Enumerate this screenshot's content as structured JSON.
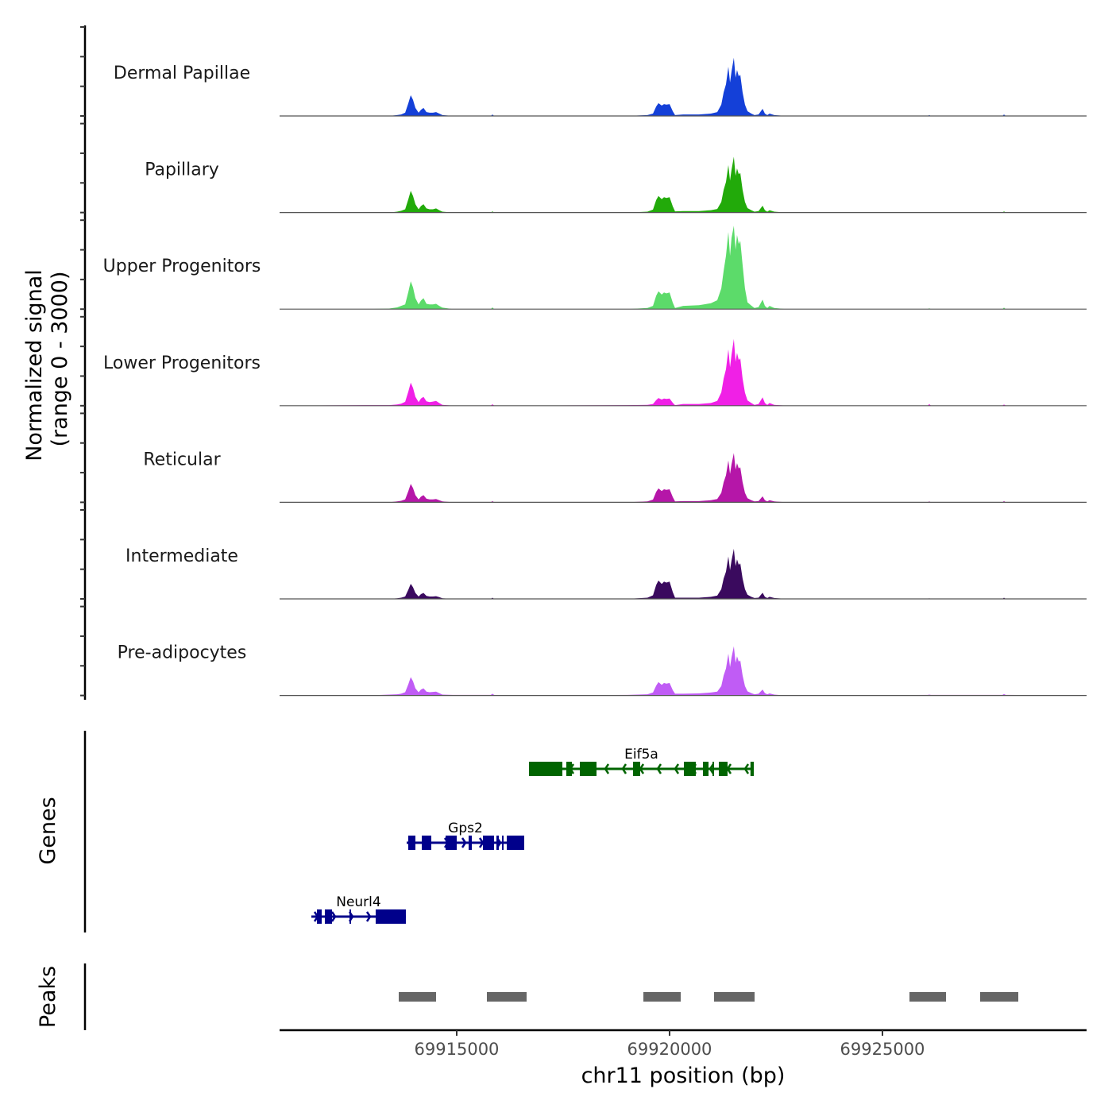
{
  "chart_data": {
    "type": "area",
    "title": "",
    "xlabel": "chr11 position (bp)",
    "ylabel": "Normalized signal\n(range 0 - 3000)",
    "ylabel_lines": [
      "Normalized signal",
      "(range 0 - 3000)"
    ],
    "ylim": [
      0,
      3000
    ],
    "xlim": [
      69910840,
      69929795
    ],
    "x_ticks": [
      69915000,
      69920000,
      69925000
    ],
    "x_tick_labels": [
      "69915000",
      "69920000",
      "69925000"
    ],
    "grid": false,
    "x": [
      69910840,
      69912855,
      69913415,
      69913600,
      69913695,
      69913790,
      69913865,
      69913920,
      69913975,
      69914030,
      69914105,
      69914160,
      69914220,
      69914290,
      69914365,
      69914440,
      69914515,
      69914590,
      69914665,
      69914910,
      69915800,
      69915840,
      69915880,
      69916215,
      69919010,
      69919480,
      69919610,
      69919685,
      69919740,
      69919815,
      69919870,
      69919925,
      69920000,
      69920075,
      69920130,
      69920320,
      69920690,
      69920970,
      69921120,
      69921215,
      69921270,
      69921325,
      69921380,
      69921420,
      69921455,
      69921510,
      69921550,
      69921585,
      69921625,
      69921660,
      69921715,
      69921770,
      69921830,
      69921920,
      69921995,
      69922090,
      69922185,
      69922240,
      69922295,
      69922350,
      69922460,
      69922740,
      69926065,
      69926100,
      69926140,
      69927820,
      69927855,
      69927895,
      69929795
    ],
    "series": [
      {
        "name": "Dermal Papillae",
        "color": "#1440d8",
        "values": [
          0,
          0,
          0,
          30,
          50,
          110,
          430,
          700,
          540,
          270,
          110,
          210,
          270,
          130,
          110,
          110,
          130,
          80,
          30,
          0,
          0,
          50,
          0,
          0,
          0,
          30,
          80,
          320,
          430,
          350,
          400,
          380,
          400,
          160,
          30,
          50,
          50,
          80,
          130,
          380,
          800,
          1070,
          1660,
          1130,
          1500,
          1960,
          1290,
          1550,
          1340,
          1390,
          800,
          380,
          160,
          80,
          30,
          50,
          240,
          80,
          30,
          80,
          30,
          0,
          0,
          30,
          0,
          0,
          50,
          0,
          0
        ]
      },
      {
        "name": "Papillary",
        "color": "#22aa0a",
        "values": [
          0,
          0,
          0,
          30,
          60,
          110,
          450,
          730,
          560,
          280,
          110,
          220,
          280,
          140,
          110,
          110,
          140,
          80,
          30,
          0,
          0,
          40,
          0,
          0,
          0,
          30,
          100,
          420,
          560,
          450,
          520,
          490,
          520,
          210,
          40,
          50,
          50,
          80,
          120,
          360,
          770,
          1030,
          1600,
          1080,
          1440,
          1880,
          1240,
          1490,
          1290,
          1340,
          770,
          360,
          150,
          80,
          30,
          50,
          230,
          80,
          30,
          80,
          30,
          0,
          0,
          20,
          0,
          0,
          40,
          0,
          0
        ]
      },
      {
        "name": "Upper Progenitors",
        "color": "#5cdb6a",
        "values": [
          0,
          0,
          20,
          60,
          110,
          160,
          580,
          940,
          730,
          370,
          160,
          290,
          370,
          180,
          160,
          160,
          180,
          110,
          50,
          0,
          0,
          60,
          0,
          0,
          0,
          40,
          110,
          450,
          600,
          490,
          560,
          530,
          560,
          220,
          40,
          110,
          130,
          200,
          300,
          700,
          1300,
          1800,
          2600,
          1800,
          2400,
          2810,
          2000,
          2500,
          2200,
          2300,
          1500,
          700,
          230,
          120,
          40,
          70,
          320,
          110,
          40,
          110,
          40,
          0,
          0,
          30,
          0,
          0,
          50,
          0,
          0
        ]
      },
      {
        "name": "Lower Progenitors",
        "color": "#f020e6",
        "values": [
          0,
          20,
          20,
          40,
          70,
          130,
          480,
          780,
          600,
          300,
          120,
          240,
          300,
          150,
          120,
          140,
          160,
          90,
          30,
          0,
          0,
          50,
          0,
          0,
          20,
          30,
          60,
          190,
          260,
          210,
          240,
          230,
          240,
          100,
          20,
          60,
          60,
          90,
          160,
          450,
          920,
          1230,
          1900,
          1300,
          1720,
          2250,
          1480,
          1780,
          1540,
          1600,
          920,
          440,
          180,
          90,
          30,
          60,
          280,
          90,
          30,
          90,
          30,
          0,
          0,
          60,
          0,
          0,
          40,
          0,
          0
        ]
      },
      {
        "name": "Reticular",
        "color": "#b516a8",
        "values": [
          0,
          0,
          0,
          30,
          50,
          100,
          380,
          620,
          480,
          240,
          100,
          190,
          240,
          120,
          100,
          100,
          110,
          70,
          30,
          0,
          0,
          40,
          0,
          0,
          0,
          30,
          90,
          350,
          470,
          380,
          440,
          420,
          440,
          180,
          30,
          40,
          40,
          70,
          110,
          320,
          680,
          910,
          1410,
          960,
          1280,
          1660,
          1100,
          1320,
          1140,
          1180,
          680,
          320,
          140,
          70,
          30,
          40,
          200,
          70,
          30,
          70,
          30,
          0,
          0,
          30,
          0,
          0,
          40,
          0,
          0
        ]
      },
      {
        "name": "Intermediate",
        "color": "#3a0a5e",
        "values": [
          0,
          0,
          0,
          20,
          40,
          80,
          310,
          510,
          390,
          200,
          80,
          160,
          200,
          100,
          80,
          80,
          90,
          60,
          20,
          0,
          0,
          40,
          0,
          0,
          0,
          40,
          120,
          470,
          620,
          500,
          580,
          550,
          580,
          230,
          40,
          40,
          40,
          70,
          110,
          330,
          690,
          920,
          1430,
          970,
          1290,
          1690,
          1110,
          1330,
          1150,
          1200,
          690,
          330,
          140,
          70,
          30,
          40,
          210,
          70,
          30,
          70,
          30,
          0,
          0,
          20,
          0,
          0,
          40,
          0,
          0
        ]
      },
      {
        "name": "Pre-adipocytes",
        "color": "#c05cf5",
        "values": [
          0,
          0,
          30,
          40,
          60,
          110,
          380,
          620,
          480,
          240,
          110,
          200,
          240,
          130,
          110,
          120,
          130,
          80,
          30,
          20,
          20,
          60,
          20,
          0,
          20,
          40,
          100,
          330,
          450,
          360,
          420,
          400,
          420,
          180,
          60,
          60,
          70,
          100,
          130,
          320,
          680,
          910,
          1410,
          960,
          1280,
          1660,
          1100,
          1320,
          1140,
          1180,
          680,
          320,
          140,
          80,
          40,
          60,
          200,
          80,
          40,
          70,
          30,
          0,
          20,
          30,
          20,
          20,
          50,
          20,
          0
        ]
      }
    ],
    "genes_panel": {
      "label": "Genes",
      "genes": [
        {
          "name": "Eif5a",
          "strand": "-",
          "color": "#006400",
          "start": 69916698,
          "end": 69921978,
          "exons": [
            [
              69916698,
              69917482
            ],
            [
              69917575,
              69917706
            ],
            [
              69917892,
              69918284
            ],
            [
              69919142,
              69919310
            ],
            [
              69920336,
              69920616
            ],
            [
              69920784,
              69920915
            ],
            [
              69921008,
              69921045
            ],
            [
              69921157,
              69921362
            ],
            [
              69921900,
              69921978
            ]
          ]
        },
        {
          "name": "Gps2",
          "strand": "+",
          "color": "#00008b",
          "start": 69913825,
          "end": 69916586,
          "exons": [
            [
              69913862,
              69914030
            ],
            [
              69914180,
              69914403
            ],
            [
              69914739,
              69915001
            ],
            [
              69915280,
              69915355
            ],
            [
              69915616,
              69915877
            ],
            [
              69915933,
              69915989
            ],
            [
              69916064,
              69916101
            ],
            [
              69916176,
              69916586
            ]
          ]
        },
        {
          "name": "Neurl4",
          "strand": "+",
          "color": "#00008b",
          "start": 69911586,
          "end": 69913806,
          "exons": [
            [
              69911717,
              69911829
            ],
            [
              69911903,
              69912071
            ],
            [
              69912482,
              69912500
            ],
            [
              69913097,
              69913806
            ]
          ]
        }
      ]
    },
    "peaks_panel": {
      "label": "Peaks",
      "color": "#666666",
      "peaks": [
        [
          69913639,
          69914515
        ],
        [
          69915709,
          69916642
        ],
        [
          69919385,
          69920262
        ],
        [
          69921045,
          69921997
        ],
        [
          69925635,
          69926493
        ],
        [
          69927295,
          69928191
        ]
      ]
    }
  }
}
